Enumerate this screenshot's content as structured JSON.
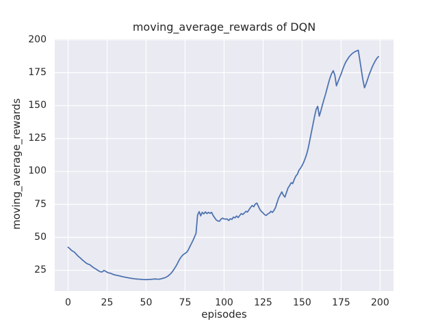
{
  "figure": {
    "title": "moving_average_rewards of DQN",
    "xlabel": "episodes",
    "ylabel": "moving_average_rewards"
  },
  "chart_data": {
    "type": "line",
    "title": "moving_average_rewards of DQN",
    "xlabel": "episodes",
    "ylabel": "moving_average_rewards",
    "xlim": [
      -8.55,
      208.6
    ],
    "ylim": [
      9.2,
      200.6
    ],
    "x_ticks": [
      0,
      25,
      50,
      75,
      100,
      125,
      150,
      175,
      200
    ],
    "y_ticks": [
      25,
      50,
      75,
      100,
      125,
      150,
      175,
      200
    ],
    "grid": true,
    "legend": false,
    "style": {
      "axes_background": "#eaeaf2",
      "grid_color": "#ffffff",
      "line_color": "#4c72b0",
      "text_color": "#262626"
    },
    "series": [
      {
        "name": "moving_average_rewards",
        "points": [
          [
            0,
            42.5
          ],
          [
            1,
            41.5
          ],
          [
            2,
            40.3
          ],
          [
            3,
            39.5
          ],
          [
            4,
            38.8
          ],
          [
            5,
            37.5
          ],
          [
            6,
            36.2
          ],
          [
            7,
            35.2
          ],
          [
            8,
            34.2
          ],
          [
            9,
            33.0
          ],
          [
            10,
            32.0
          ],
          [
            11,
            31.0
          ],
          [
            12,
            30.2
          ],
          [
            13,
            29.6
          ],
          [
            14,
            29.2
          ],
          [
            15,
            28.2
          ],
          [
            16,
            27.3
          ],
          [
            17,
            26.5
          ],
          [
            18,
            25.8
          ],
          [
            19,
            25.0
          ],
          [
            20,
            24.3
          ],
          [
            21,
            23.7
          ],
          [
            22,
            23.9
          ],
          [
            23,
            24.9
          ],
          [
            24,
            24.3
          ],
          [
            25,
            23.5
          ],
          [
            26,
            23.0
          ],
          [
            27,
            22.8
          ],
          [
            28,
            22.4
          ],
          [
            29,
            21.8
          ],
          [
            30,
            21.5
          ],
          [
            31,
            21.2
          ],
          [
            32,
            21.0
          ],
          [
            33,
            20.7
          ],
          [
            34,
            20.4
          ],
          [
            35,
            20.1
          ],
          [
            36,
            19.9
          ],
          [
            37,
            19.6
          ],
          [
            38,
            19.4
          ],
          [
            39,
            19.2
          ],
          [
            40,
            19.0
          ],
          [
            41,
            18.8
          ],
          [
            42,
            18.7
          ],
          [
            43,
            18.5
          ],
          [
            44,
            18.4
          ],
          [
            45,
            18.3
          ],
          [
            46,
            18.2
          ],
          [
            47,
            18.1
          ],
          [
            48,
            18.0
          ],
          [
            49,
            17.95
          ],
          [
            50,
            17.9
          ],
          [
            51,
            17.95
          ],
          [
            52,
            18.05
          ],
          [
            53,
            18.1
          ],
          [
            54,
            18.2
          ],
          [
            55,
            18.35
          ],
          [
            56,
            18.45
          ],
          [
            57,
            18.3
          ],
          [
            58,
            18.25
          ],
          [
            59,
            18.4
          ],
          [
            60,
            18.7
          ],
          [
            61,
            19.0
          ],
          [
            62,
            19.3
          ],
          [
            63,
            19.9
          ],
          [
            64,
            20.6
          ],
          [
            65,
            21.6
          ],
          [
            66,
            22.7
          ],
          [
            67,
            24.2
          ],
          [
            68,
            26.0
          ],
          [
            69,
            27.8
          ],
          [
            70,
            30.0
          ],
          [
            71,
            32.3
          ],
          [
            72,
            34.3
          ],
          [
            73,
            35.9
          ],
          [
            74,
            37.1
          ],
          [
            75,
            37.9
          ],
          [
            76,
            38.6
          ],
          [
            77,
            40.3
          ],
          [
            78,
            42.8
          ],
          [
            79,
            45.2
          ],
          [
            80,
            47.6
          ],
          [
            81,
            50.2
          ],
          [
            82,
            53.0
          ],
          [
            83,
            67.0
          ],
          [
            84,
            69.5
          ],
          [
            85,
            66.3
          ],
          [
            86,
            69.0
          ],
          [
            87,
            67.8
          ],
          [
            88,
            69.3
          ],
          [
            89,
            68.0
          ],
          [
            90,
            69.0
          ],
          [
            91,
            68.2
          ],
          [
            92,
            69.0
          ],
          [
            93,
            66.5
          ],
          [
            94,
            64.8
          ],
          [
            95,
            63.2
          ],
          [
            96,
            62.4
          ],
          [
            97,
            62.2
          ],
          [
            98,
            63.8
          ],
          [
            99,
            64.6
          ],
          [
            100,
            64.0
          ],
          [
            101,
            63.8
          ],
          [
            102,
            63.9
          ],
          [
            103,
            62.8
          ],
          [
            104,
            64.2
          ],
          [
            105,
            63.6
          ],
          [
            106,
            65.4
          ],
          [
            107,
            64.8
          ],
          [
            108,
            66.2
          ],
          [
            109,
            65.0
          ],
          [
            110,
            66.5
          ],
          [
            111,
            68.0
          ],
          [
            112,
            67.4
          ],
          [
            113,
            68.5
          ],
          [
            114,
            69.8
          ],
          [
            115,
            69.2
          ],
          [
            116,
            71.0
          ],
          [
            117,
            72.8
          ],
          [
            118,
            74.2
          ],
          [
            119,
            73.2
          ],
          [
            120,
            75.3
          ],
          [
            121,
            76.0
          ],
          [
            122,
            73.5
          ],
          [
            123,
            71.0
          ],
          [
            124,
            69.5
          ],
          [
            125,
            68.5
          ],
          [
            126,
            67.2
          ],
          [
            127,
            66.6
          ],
          [
            128,
            67.8
          ],
          [
            129,
            68.4
          ],
          [
            130,
            69.8
          ],
          [
            131,
            68.9
          ],
          [
            132,
            70.5
          ],
          [
            133,
            72.8
          ],
          [
            134,
            76.5
          ],
          [
            135,
            80.0
          ],
          [
            136,
            82.3
          ],
          [
            137,
            84.5
          ],
          [
            138,
            82.0
          ],
          [
            139,
            80.5
          ],
          [
            140,
            84.0
          ],
          [
            141,
            87.5
          ],
          [
            142,
            89.3
          ],
          [
            143,
            91.5
          ],
          [
            144,
            90.8
          ],
          [
            145,
            94.0
          ],
          [
            146,
            96.5
          ],
          [
            147,
            98.0
          ],
          [
            148,
            101.0
          ],
          [
            149,
            102.5
          ],
          [
            150,
            104.5
          ],
          [
            151,
            107.0
          ],
          [
            152,
            110.0
          ],
          [
            153,
            113.5
          ],
          [
            154,
            118.0
          ],
          [
            155,
            124.0
          ],
          [
            156,
            130.0
          ],
          [
            157,
            136.0
          ],
          [
            158,
            142.0
          ],
          [
            159,
            147.0
          ],
          [
            160,
            149.5
          ],
          [
            161,
            142.0
          ],
          [
            162,
            146.0
          ],
          [
            163,
            150.5
          ],
          [
            164,
            154.5
          ],
          [
            165,
            158.5
          ],
          [
            166,
            163.0
          ],
          [
            167,
            167.5
          ],
          [
            168,
            171.5
          ],
          [
            169,
            174.5
          ],
          [
            170,
            176.5
          ],
          [
            171,
            173.0
          ],
          [
            172,
            165.0
          ],
          [
            173,
            168.0
          ],
          [
            174,
            171.0
          ],
          [
            175,
            174.0
          ],
          [
            176,
            177.5
          ],
          [
            177,
            180.5
          ],
          [
            178,
            183.0
          ],
          [
            179,
            185.0
          ],
          [
            180,
            186.8
          ],
          [
            181,
            188.2
          ],
          [
            182,
            189.4
          ],
          [
            183,
            190.3
          ],
          [
            184,
            191.0
          ],
          [
            185,
            191.5
          ],
          [
            186,
            192.0
          ],
          [
            187,
            184.5
          ],
          [
            188,
            177.0
          ],
          [
            189,
            169.5
          ],
          [
            190,
            163.5
          ],
          [
            191,
            166.5
          ],
          [
            192,
            170.0
          ],
          [
            193,
            173.5
          ],
          [
            194,
            176.5
          ],
          [
            195,
            179.5
          ],
          [
            196,
            182.0
          ],
          [
            197,
            184.2
          ],
          [
            198,
            186.0
          ],
          [
            199,
            187.2
          ]
        ]
      }
    ]
  }
}
